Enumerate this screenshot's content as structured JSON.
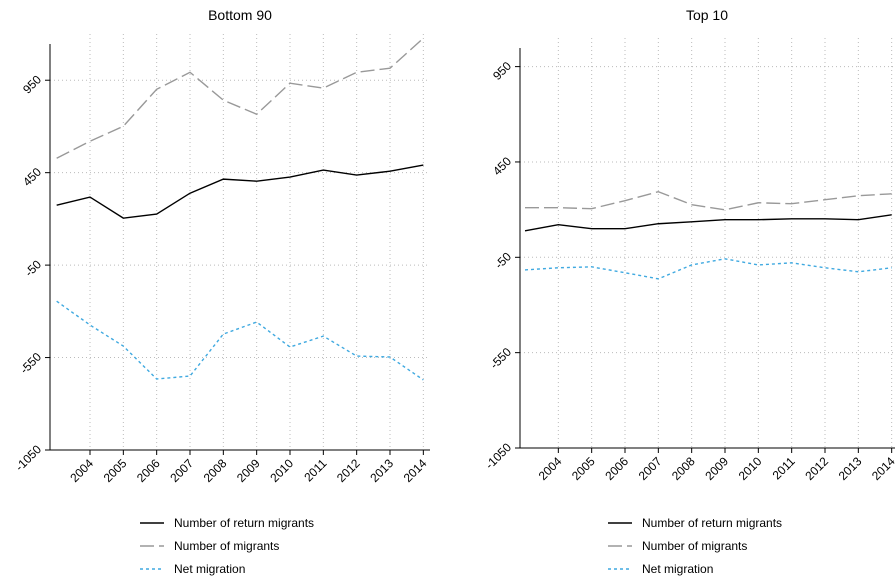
{
  "chart_data": [
    {
      "type": "line",
      "title": "Bottom 90",
      "x": [
        2003,
        2004,
        2005,
        2006,
        2007,
        2008,
        2009,
        2010,
        2011,
        2012,
        2013,
        2014
      ],
      "xlim": [
        2002.8,
        2014.2
      ],
      "xticks": [
        2004,
        2005,
        2006,
        2007,
        2008,
        2009,
        2010,
        2011,
        2012,
        2013,
        2014
      ],
      "ylim": [
        -1050,
        1200
      ],
      "yticks": [
        -1050,
        -550,
        -50,
        450,
        950
      ],
      "grid": true,
      "series": [
        {
          "name": "Number of return migrants",
          "color": "#000000",
          "dash": "solid",
          "values": [
            274,
            318,
            204,
            226,
            339,
            415,
            404,
            426,
            464,
            437,
            458,
            491
          ]
        },
        {
          "name": "Number of migrants",
          "color": "#999999",
          "dash": "longdash",
          "values": [
            528,
            620,
            701,
            901,
            993,
            842,
            766,
            934,
            907,
            993,
            1015,
            1177
          ]
        },
        {
          "name": "Net migration",
          "color": "#3fa9e0",
          "dash": "dot",
          "values": [
            -245,
            -374,
            -488,
            -666,
            -650,
            -423,
            -358,
            -493,
            -434,
            -542,
            -547,
            -671
          ]
        }
      ]
    },
    {
      "type": "line",
      "title": "Top 10",
      "x": [
        2003,
        2004,
        2005,
        2006,
        2007,
        2008,
        2009,
        2010,
        2011,
        2012,
        2013,
        2014
      ],
      "xlim": [
        2002.85,
        2014.1
      ],
      "xticks": [
        2004,
        2005,
        2006,
        2007,
        2008,
        2009,
        2010,
        2011,
        2012,
        2013,
        2014
      ],
      "ylim": [
        -1050,
        1100
      ],
      "yticks": [
        -1050,
        -550,
        -50,
        450,
        950
      ],
      "grid": true,
      "series": [
        {
          "name": "Number of return migrants",
          "color": "#000000",
          "dash": "solid",
          "values": [
            89,
            121,
            100,
            100,
            126,
            136,
            147,
            147,
            152,
            152,
            147,
            173
          ]
        },
        {
          "name": "Number of migrants",
          "color": "#999999",
          "dash": "longdash",
          "values": [
            210,
            210,
            205,
            247,
            294,
            226,
            199,
            236,
            231,
            252,
            273,
            283
          ]
        },
        {
          "name": "Net migration",
          "color": "#3fa9e0",
          "dash": "dot",
          "values": [
            -116,
            -105,
            -100,
            -131,
            -163,
            -90,
            -58,
            -90,
            -79,
            -105,
            -126,
            -105
          ]
        }
      ]
    }
  ]
}
